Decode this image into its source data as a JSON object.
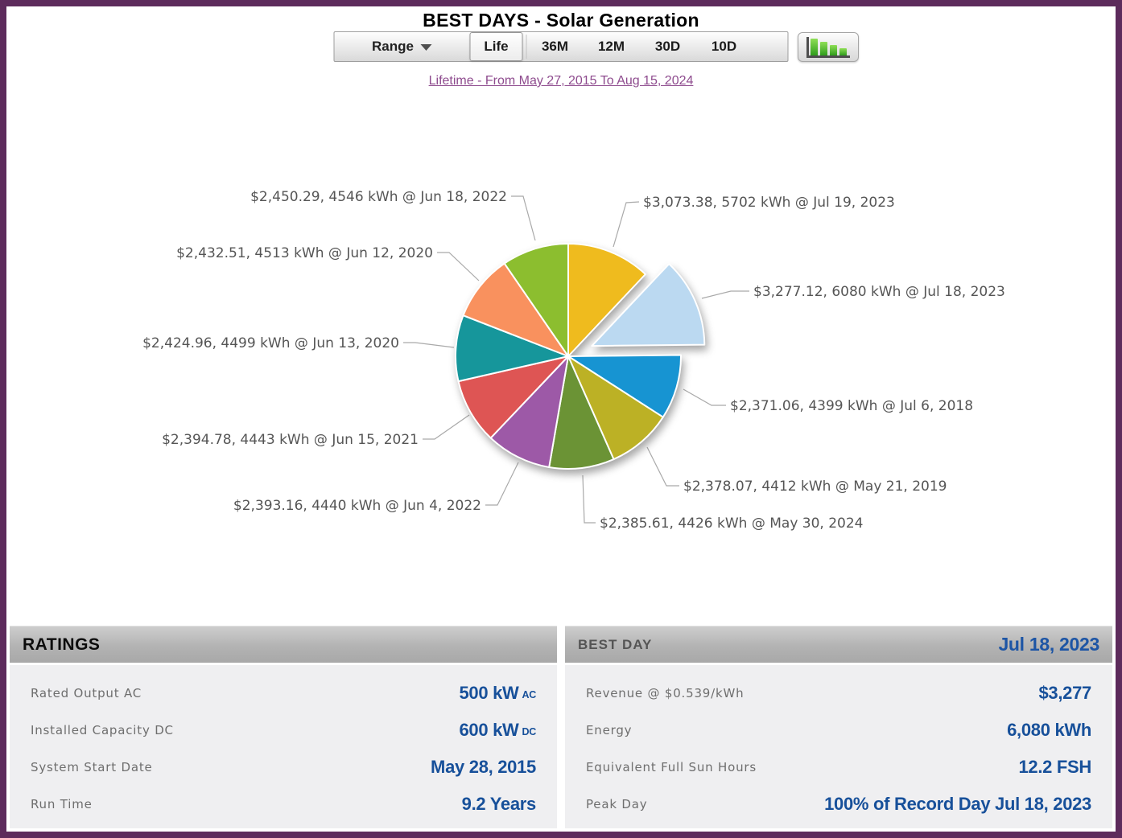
{
  "page": {
    "title": "BEST DAYS - Solar Generation",
    "subtitle_link": "Lifetime - From May 27, 2015 To Aug 15, 2024"
  },
  "toolbar": {
    "range_label": "Range",
    "buttons": [
      {
        "label": "Life",
        "selected": true
      },
      {
        "label": "36M",
        "selected": false
      },
      {
        "label": "12M",
        "selected": false
      },
      {
        "label": "30D",
        "selected": false
      },
      {
        "label": "10D",
        "selected": false
      }
    ],
    "chart_icon": "bar-chart-icon"
  },
  "chart_data": {
    "type": "pie",
    "title": "BEST DAYS - Solar Generation",
    "units": "kWh",
    "legend_position": "callout-labels",
    "slices": [
      {
        "date": "Jul 19, 2023",
        "revenue_usd": 3073.38,
        "energy_kwh": 5702,
        "label": "$3,073.38, 5702 kWh @ Jul 19, 2023",
        "color": "#EFBB1E",
        "exploded": false
      },
      {
        "date": "Jul 18, 2023",
        "revenue_usd": 3277.12,
        "energy_kwh": 6080,
        "label": "$3,277.12, 6080 kWh @ Jul 18, 2023",
        "color": "#BBD9F1",
        "exploded": true
      },
      {
        "date": "Jul 6, 2018",
        "revenue_usd": 2371.06,
        "energy_kwh": 4399,
        "label": "$2,371.06, 4399 kWh @ Jul 6, 2018",
        "color": "#1794D2",
        "exploded": false
      },
      {
        "date": "May 21, 2019",
        "revenue_usd": 2378.07,
        "energy_kwh": 4412,
        "label": "$2,378.07, 4412 kWh @ May 21, 2019",
        "color": "#BCB125",
        "exploded": false
      },
      {
        "date": "May 30, 2024",
        "revenue_usd": 2385.61,
        "energy_kwh": 4426,
        "label": "$2,385.61, 4426 kWh @ May 30, 2024",
        "color": "#6B9335",
        "exploded": false
      },
      {
        "date": "Jun 4, 2022",
        "revenue_usd": 2393.16,
        "energy_kwh": 4440,
        "label": "$2,393.16, 4440 kWh @ Jun 4, 2022",
        "color": "#9D59A7",
        "exploded": false
      },
      {
        "date": "Jun 15, 2021",
        "revenue_usd": 2394.78,
        "energy_kwh": 4443,
        "label": "$2,394.78, 4443 kWh @ Jun 15, 2021",
        "color": "#DE5554",
        "exploded": false
      },
      {
        "date": "Jun 13, 2020",
        "revenue_usd": 2424.96,
        "energy_kwh": 4499,
        "label": "$2,424.96, 4499 kWh @ Jun 13, 2020",
        "color": "#16969B",
        "exploded": false
      },
      {
        "date": "Jun 12, 2020",
        "revenue_usd": 2432.51,
        "energy_kwh": 4513,
        "label": "$2,432.51, 4513 kWh @ Jun 12, 2020",
        "color": "#F9915E",
        "exploded": false
      },
      {
        "date": "Jun 18, 2022",
        "revenue_usd": 2450.29,
        "energy_kwh": 4546,
        "label": "$2,450.29, 4546 kWh @ Jun 18, 2022",
        "color": "#8CBE2F",
        "exploded": false
      }
    ],
    "start_angle_deg": 0,
    "direction": "clockwise"
  },
  "ratings_panel": {
    "header": "RATINGS",
    "rows": [
      {
        "label": "Rated Output AC",
        "value": "500 kW",
        "unit": "AC"
      },
      {
        "label": "Installed Capacity DC",
        "value": "600 kW",
        "unit": "DC"
      },
      {
        "label": "System Start Date",
        "value": "May 28, 2015",
        "unit": ""
      },
      {
        "label": "Run Time",
        "value": "9.2 Years",
        "unit": ""
      }
    ]
  },
  "best_day_panel": {
    "header": "BEST DAY",
    "header_value": "Jul 18, 2023",
    "rows": [
      {
        "label": "Revenue @ $0.539/kWh",
        "value": "$3,277"
      },
      {
        "label": "Energy",
        "value": "6,080 kWh"
      },
      {
        "label": "Equivalent Full Sun Hours",
        "value": "12.2 FSH"
      },
      {
        "label": "Peak Day",
        "value": "100% of Record Day Jul 18, 2023"
      }
    ]
  },
  "colors": {
    "page_border": "#5D2B5C",
    "link": "#8E4B8E",
    "panel_value_blue": "#17509A",
    "panel_label_gray": "#6e6e6e",
    "icon_bar_green": "#3FAE26"
  }
}
